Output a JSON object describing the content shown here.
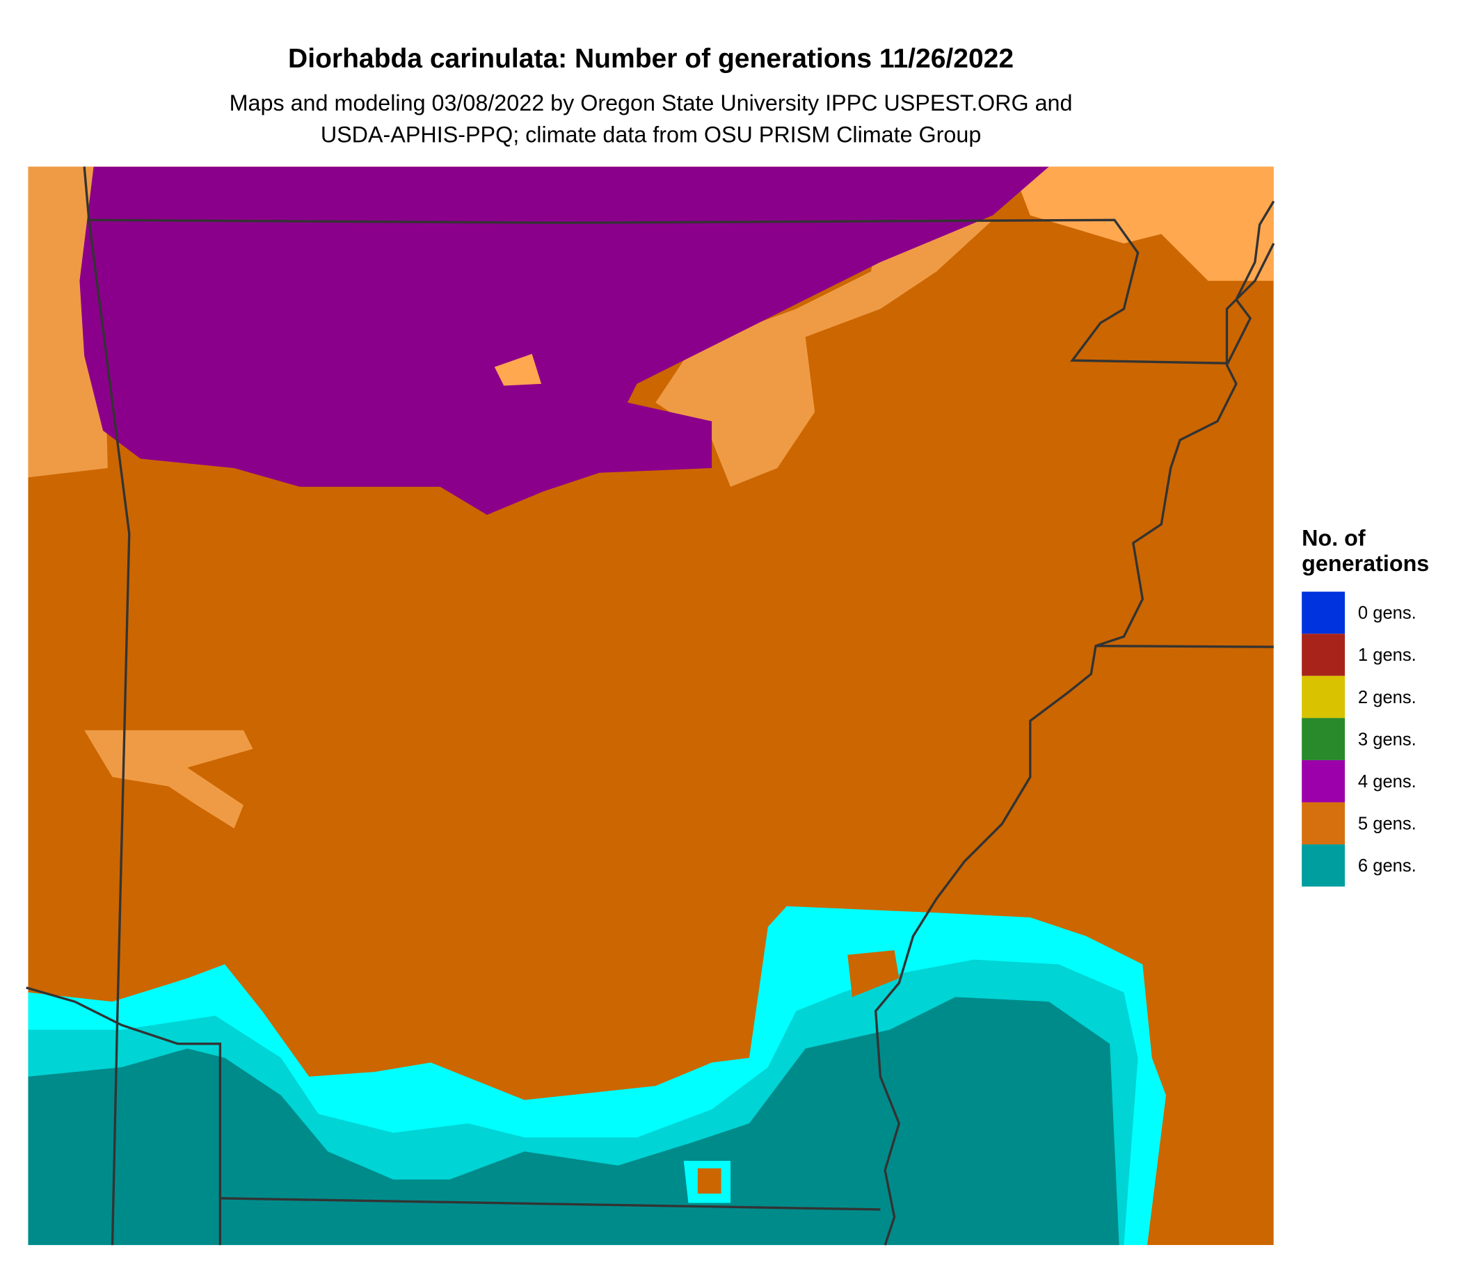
{
  "title": "Diorhabda carinulata: Number of generations 11/26/2022",
  "subtitle": [
    "Maps and modeling 03/08/2022 by Oregon State University IPPC USPEST.ORG and",
    "USDA-APHIS-PPQ; climate data from OSU PRISM Climate Group"
  ],
  "legend": {
    "title": "No. of generations",
    "items": [
      {
        "label": "0 gens.",
        "color": "#0033dd"
      },
      {
        "label": "1 gens.",
        "color": "#a8241a"
      },
      {
        "label": "2 gens.",
        "color": "#d9c200"
      },
      {
        "label": "3 gens.",
        "color": "#288a2a"
      },
      {
        "label": "4 gens.",
        "color": "#9c00aa"
      },
      {
        "label": "5 gens.",
        "color": "#d6700f"
      },
      {
        "label": "6 gens.",
        "color": "#009e9e"
      }
    ]
  }
}
